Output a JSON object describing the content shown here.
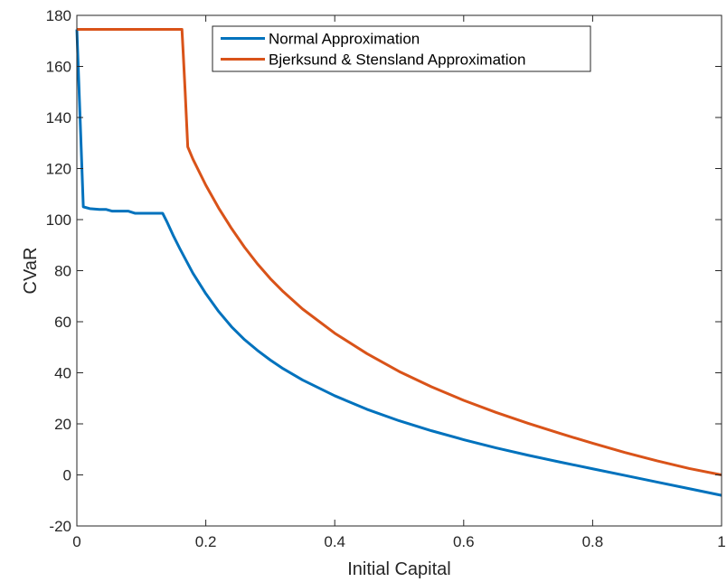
{
  "chart_data": {
    "type": "line",
    "title": "",
    "xlabel": "Initial Capital",
    "ylabel": "CVaR",
    "xlim": [
      0,
      1
    ],
    "ylim": [
      -20,
      180
    ],
    "xticks": [
      0,
      0.2,
      0.4,
      0.6,
      0.8,
      1
    ],
    "xtick_labels": [
      "0",
      "0.2",
      "0.4",
      "0.6",
      "0.8",
      "1"
    ],
    "yticks": [
      -20,
      0,
      20,
      40,
      60,
      80,
      100,
      120,
      140,
      160,
      180
    ],
    "ytick_labels": [
      "-20",
      "0",
      "20",
      "40",
      "60",
      "80",
      "100",
      "120",
      "140",
      "160",
      "180"
    ],
    "grid": false,
    "legend_position": "top-right",
    "series": [
      {
        "name": "Normal Approximation",
        "color": "#0072BD",
        "points": [
          [
            0.0,
            174.5
          ],
          [
            0.005,
            140
          ],
          [
            0.01,
            105
          ],
          [
            0.02,
            104.3
          ],
          [
            0.035,
            104.0
          ],
          [
            0.045,
            104.0
          ],
          [
            0.055,
            103.3
          ],
          [
            0.08,
            103.3
          ],
          [
            0.09,
            102.5
          ],
          [
            0.133,
            102.5
          ],
          [
            0.14,
            99.0
          ],
          [
            0.15,
            93.5
          ],
          [
            0.16,
            88.5
          ],
          [
            0.18,
            79.0
          ],
          [
            0.2,
            71.0
          ],
          [
            0.22,
            64.0
          ],
          [
            0.24,
            58.0
          ],
          [
            0.26,
            53.0
          ],
          [
            0.28,
            48.8
          ],
          [
            0.3,
            45.0
          ],
          [
            0.32,
            41.6
          ],
          [
            0.35,
            37.2
          ],
          [
            0.4,
            31.0
          ],
          [
            0.45,
            25.7
          ],
          [
            0.5,
            21.2
          ],
          [
            0.55,
            17.3
          ],
          [
            0.6,
            13.8
          ],
          [
            0.65,
            10.6
          ],
          [
            0.7,
            7.7
          ],
          [
            0.75,
            5.0
          ],
          [
            0.8,
            2.4
          ],
          [
            0.85,
            -0.2
          ],
          [
            0.9,
            -2.8
          ],
          [
            0.95,
            -5.4
          ],
          [
            1.0,
            -8.0
          ]
        ]
      },
      {
        "name": "Bjerksund & Stensland Approximation",
        "color": "#D95319",
        "points": [
          [
            0.0,
            174.5
          ],
          [
            0.163,
            174.5
          ],
          [
            0.165,
            165
          ],
          [
            0.168,
            150
          ],
          [
            0.172,
            128.5
          ],
          [
            0.18,
            123.7
          ],
          [
            0.2,
            113.5
          ],
          [
            0.22,
            104.5
          ],
          [
            0.24,
            96.5
          ],
          [
            0.26,
            89.2
          ],
          [
            0.28,
            82.7
          ],
          [
            0.3,
            76.9
          ],
          [
            0.32,
            71.8
          ],
          [
            0.35,
            65.0
          ],
          [
            0.4,
            55.5
          ],
          [
            0.45,
            47.5
          ],
          [
            0.5,
            40.5
          ],
          [
            0.55,
            34.5
          ],
          [
            0.6,
            29.2
          ],
          [
            0.65,
            24.5
          ],
          [
            0.7,
            20.2
          ],
          [
            0.75,
            16.2
          ],
          [
            0.8,
            12.4
          ],
          [
            0.85,
            8.8
          ],
          [
            0.9,
            5.5
          ],
          [
            0.95,
            2.5
          ],
          [
            1.0,
            0.0
          ]
        ]
      }
    ]
  }
}
